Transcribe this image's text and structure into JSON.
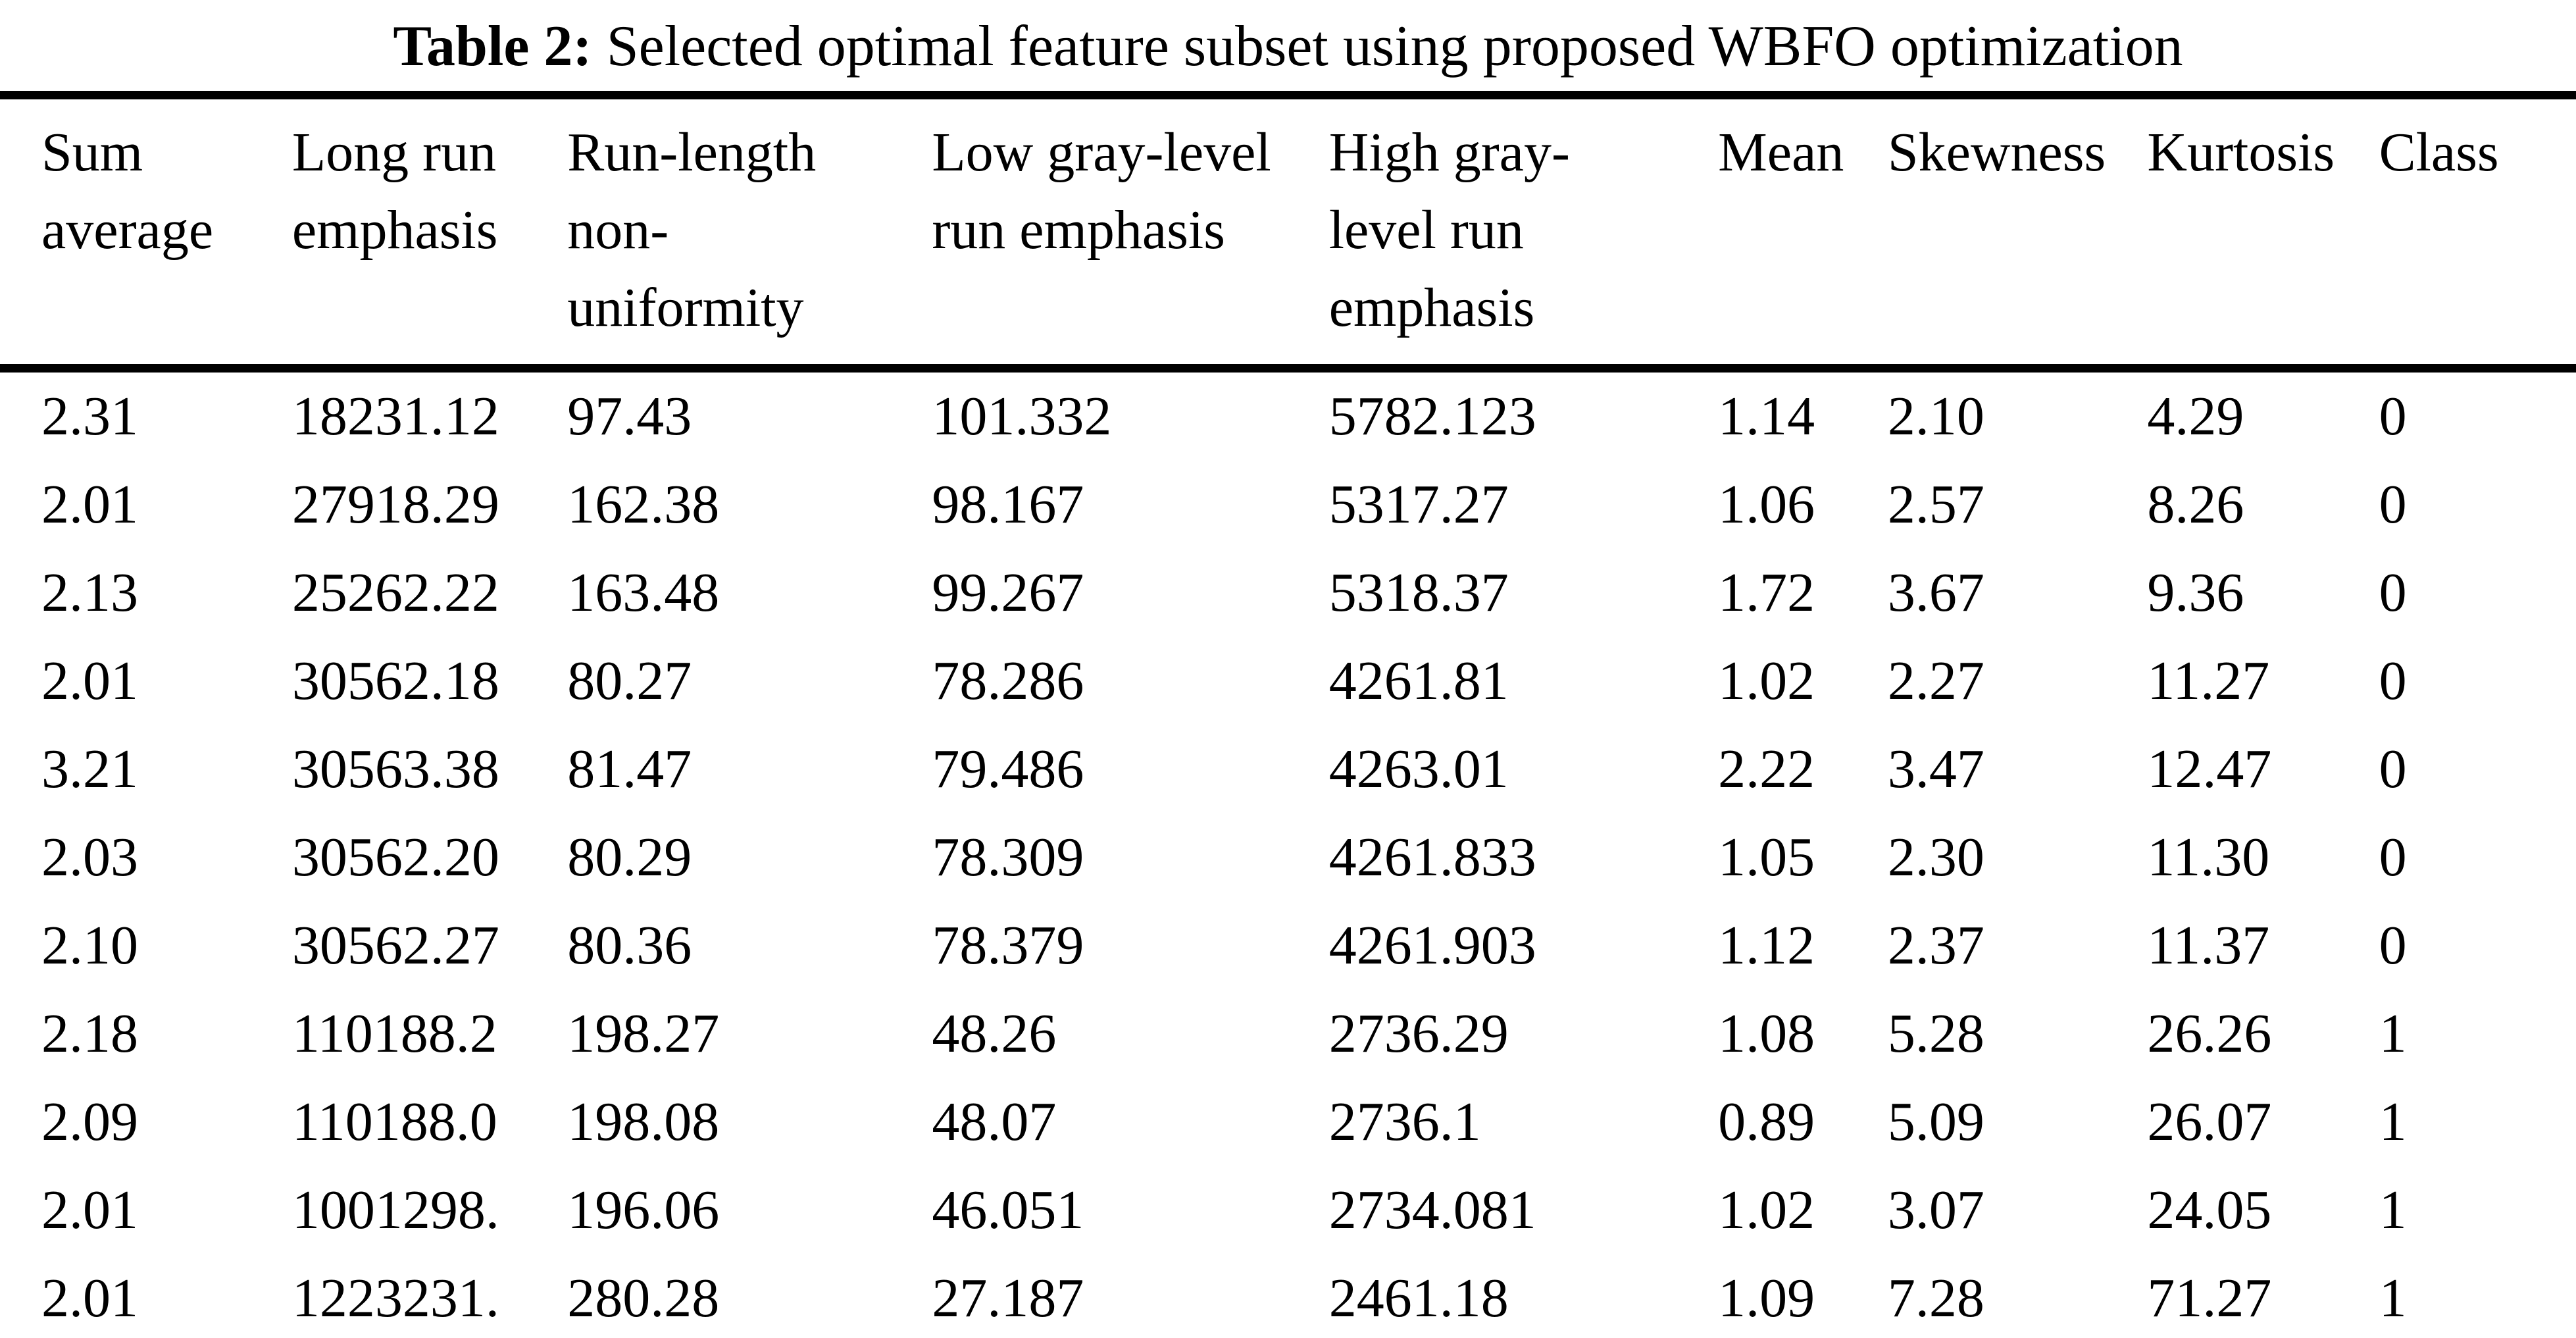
{
  "caption": {
    "label": "Table 2:",
    "text": "Selected optimal feature subset using proposed WBFO optimization"
  },
  "table": {
    "columns": [
      "Sum\naverage",
      "Long run\nemphasis",
      "Run-length\nnon-\nuniformity",
      "Low gray-level\nrun emphasis",
      "High gray-\nlevel run\nemphasis",
      "Mean",
      "Skewness",
      "Kurtosis",
      "Class"
    ],
    "rows": [
      [
        "2.31",
        "18231.12",
        "97.43",
        "101.332",
        "5782.123",
        "1.14",
        "2.10",
        "4.29",
        "0"
      ],
      [
        "2.01",
        "27918.29",
        "162.38",
        "98.167",
        "5317.27",
        "1.06",
        "2.57",
        "8.26",
        "0"
      ],
      [
        "2.13",
        "25262.22",
        "163.48",
        "99.267",
        "5318.37",
        "1.72",
        "3.67",
        "9.36",
        "0"
      ],
      [
        "2.01",
        "30562.18",
        "80.27",
        "78.286",
        "4261.81",
        "1.02",
        "2.27",
        "11.27",
        "0"
      ],
      [
        "3.21",
        "30563.38",
        "81.47",
        "79.486",
        "4263.01",
        "2.22",
        "3.47",
        "12.47",
        "0"
      ],
      [
        "2.03",
        "30562.20",
        "80.29",
        "78.309",
        "4261.833",
        "1.05",
        "2.30",
        "11.30",
        "0"
      ],
      [
        "2.10",
        "30562.27",
        "80.36",
        "78.379",
        "4261.903",
        "1.12",
        "2.37",
        "11.37",
        "0"
      ],
      [
        "2.18",
        "110188.2",
        "198.27",
        "48.26",
        "2736.29",
        "1.08",
        "5.28",
        "26.26",
        "1"
      ],
      [
        "2.09",
        "110188.0",
        "198.08",
        "48.07",
        "2736.1",
        "0.89",
        "5.09",
        "26.07",
        "1"
      ],
      [
        "2.01",
        "1001298.",
        "196.06",
        "46.051",
        "2734.081",
        "1.02",
        "3.07",
        "24.05",
        "1"
      ],
      [
        "2.01",
        "1223231.",
        "280.28",
        "27.187",
        "2461.18",
        "1.09",
        "7.28",
        "71.27",
        "1"
      ]
    ]
  }
}
